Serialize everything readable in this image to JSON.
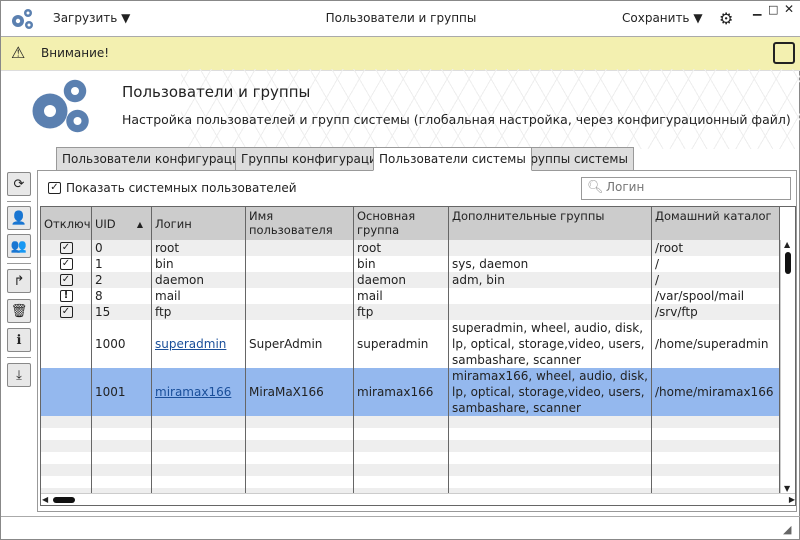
{
  "titlebar": {
    "load": "Загрузить",
    "title": "Пользователи и группы",
    "save": "Сохранить"
  },
  "warning": {
    "text": "Внимание!"
  },
  "header": {
    "title": "Пользователи и группы",
    "subtitle": "Настройка пользователей и групп системы (глобальная настройка, через конфигурационный файл)"
  },
  "tabs": [
    {
      "label": "Пользователи конфигурации"
    },
    {
      "label": "Группы конфигурации"
    },
    {
      "label": "Пользователи системы",
      "active": true
    },
    {
      "label": "Группы системы"
    }
  ],
  "panel": {
    "show_system_label": "Показать системных пользователей",
    "show_system_checked": true,
    "search_placeholder": "Логин"
  },
  "toolbar": [
    "refresh-icon",
    "user-card-icon",
    "users-icon",
    "share-icon",
    "trash-icon",
    "info-icon",
    "download-icon"
  ],
  "table": {
    "columns": [
      "Отключ",
      "UID",
      "Логин",
      "Имя пользователя",
      "Основная группа",
      "Дополнительные группы",
      "Домашний каталог"
    ],
    "sort": {
      "column": "UID",
      "direction": "asc"
    },
    "rows": [
      {
        "status": "check",
        "uid": "0",
        "login": "root",
        "name": "",
        "group": "root",
        "extra": "",
        "home": "/root"
      },
      {
        "status": "check",
        "uid": "1",
        "login": "bin",
        "name": "",
        "group": "bin",
        "extra": "sys, daemon",
        "home": "/"
      },
      {
        "status": "check",
        "uid": "2",
        "login": "daemon",
        "name": "",
        "group": "daemon",
        "extra": "adm, bin",
        "home": "/"
      },
      {
        "status": "warn",
        "uid": "8",
        "login": "mail",
        "name": "",
        "group": "mail",
        "extra": "",
        "home": "/var/spool/mail"
      },
      {
        "status": "check",
        "uid": "15",
        "login": "ftp",
        "name": "",
        "group": "ftp",
        "extra": "",
        "home": "/srv/ftp"
      },
      {
        "status": "",
        "uid": "1000",
        "login": "superadmin",
        "name": "SuperAdmin",
        "group": "superadmin",
        "extra": "superadmin, wheel, audio, disk, lp, optical, storage,video, users, sambashare, scanner",
        "home": "/home/superadmin"
      },
      {
        "status": "",
        "uid": "1001",
        "login": "miramax166",
        "name": "MiraMaX166",
        "group": "miramax166",
        "extra": "miramax166, wheel, audio, disk, lp, optical, storage,video, users, sambashare, scanner",
        "home": "/home/miramax166",
        "selected": true
      }
    ]
  },
  "colors": {
    "accent": "#5b80b0",
    "warning_bg": "#f3f0b0",
    "selected_row": "#94b8ee",
    "header_bg": "#cccccc",
    "stripe": "#eeeeee"
  }
}
